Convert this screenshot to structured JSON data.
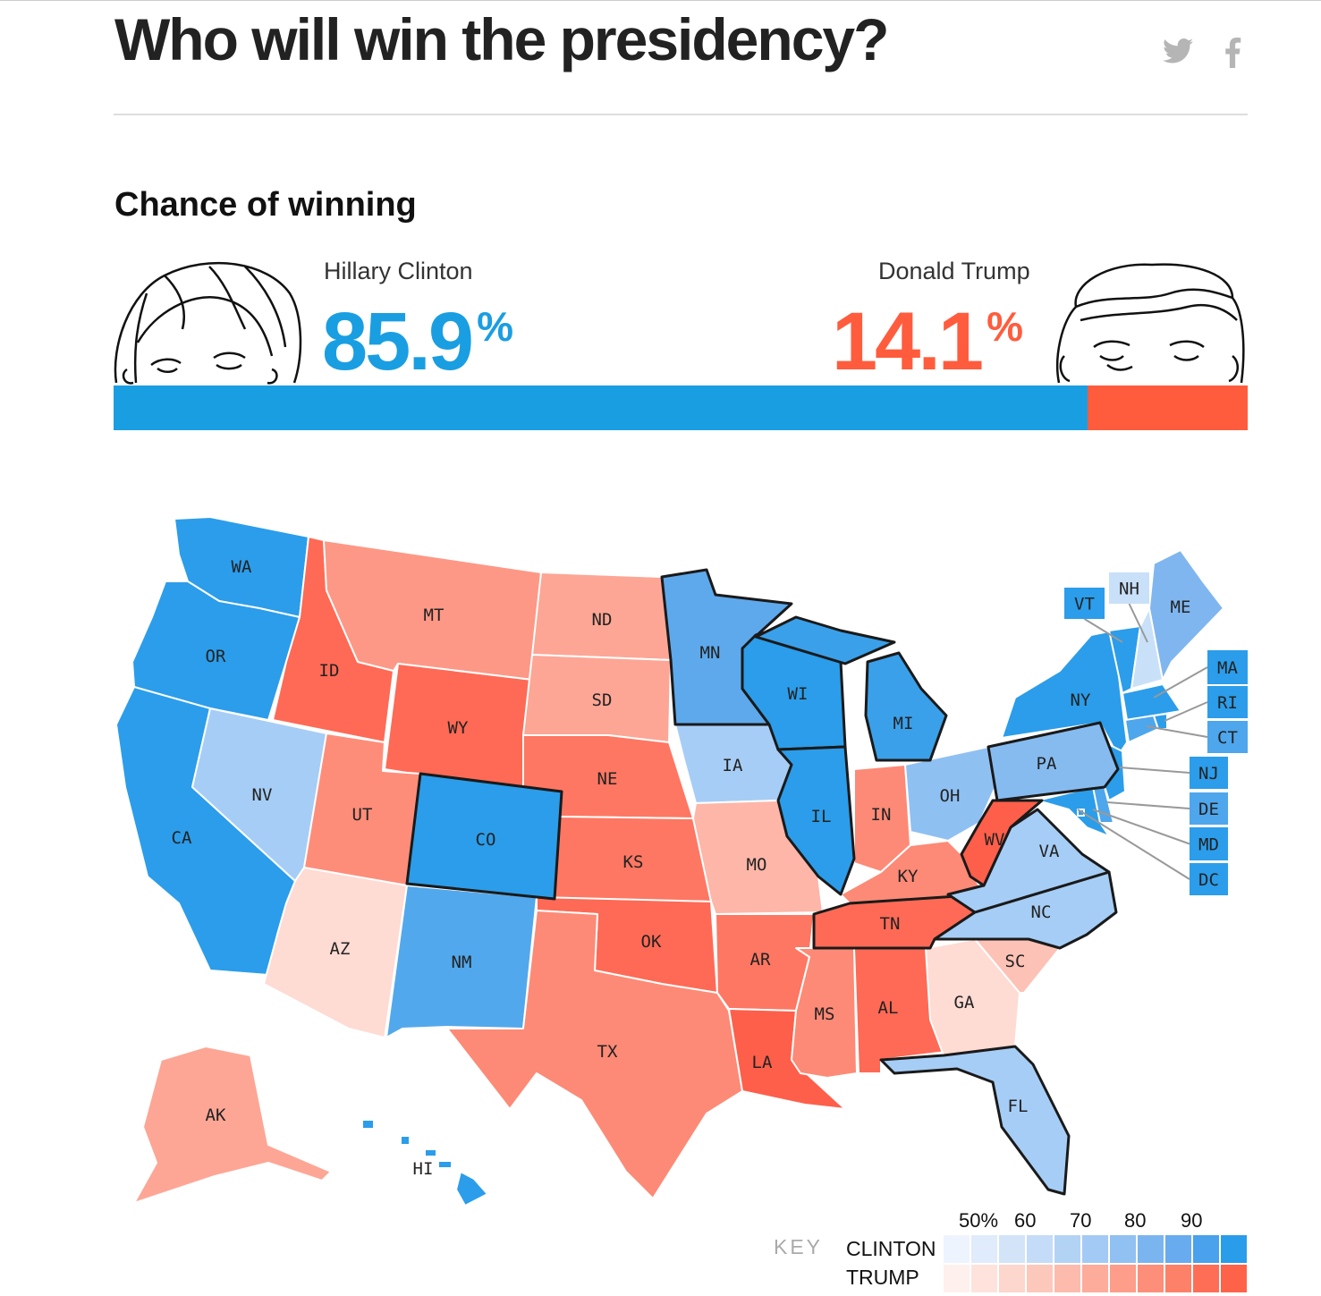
{
  "header": {
    "title": "Who will win the presidency?",
    "share_icons": [
      "twitter-icon",
      "facebook-icon"
    ]
  },
  "section_title": "Chance of winning",
  "clinton": {
    "name": "Hillary Clinton",
    "value": "85.9",
    "unit": "%",
    "probability": 85.9,
    "color": "#1a9ee2"
  },
  "trump": {
    "name": "Donald Trump",
    "value": "14.1",
    "unit": "%",
    "probability": 14.1,
    "color": "#ff5c3e"
  },
  "map": {
    "states": [
      {
        "code": "WA",
        "color": "#2b9dea"
      },
      {
        "code": "OR",
        "color": "#2b9dea"
      },
      {
        "code": "CA",
        "color": "#2b9dea"
      },
      {
        "code": "NV",
        "color": "#a6cdf5"
      },
      {
        "code": "ID",
        "color": "#fe6a55"
      },
      {
        "code": "MT",
        "color": "#fd9886"
      },
      {
        "code": "WY",
        "color": "#fe6a55"
      },
      {
        "code": "UT",
        "color": "#fd8d79"
      },
      {
        "code": "AZ",
        "color": "#fedbd3"
      },
      {
        "code": "CO",
        "color": "#2b9dea"
      },
      {
        "code": "NM",
        "color": "#52a8ec"
      },
      {
        "code": "ND",
        "color": "#fda695"
      },
      {
        "code": "SD",
        "color": "#fda695"
      },
      {
        "code": "NE",
        "color": "#fe7763"
      },
      {
        "code": "KS",
        "color": "#fe7763"
      },
      {
        "code": "OK",
        "color": "#fe6a55"
      },
      {
        "code": "TX",
        "color": "#fd8a76"
      },
      {
        "code": "MN",
        "color": "#5ea9ec"
      },
      {
        "code": "IA",
        "color": "#a6cdf5"
      },
      {
        "code": "MO",
        "color": "#fdb6a8"
      },
      {
        "code": "AR",
        "color": "#fe7763"
      },
      {
        "code": "LA",
        "color": "#fe5f4a"
      },
      {
        "code": "WI",
        "color": "#2b9dea"
      },
      {
        "code": "IL",
        "color": "#2b9dea"
      },
      {
        "code": "MI",
        "color": "#3aa0ea"
      },
      {
        "code": "IN",
        "color": "#fd8a76"
      },
      {
        "code": "OH",
        "color": "#8fc0f2"
      },
      {
        "code": "KY",
        "color": "#fd8a76"
      },
      {
        "code": "TN",
        "color": "#fe6a55"
      },
      {
        "code": "MS",
        "color": "#fd8a76"
      },
      {
        "code": "AL",
        "color": "#fe6a55"
      },
      {
        "code": "GA",
        "color": "#fedbd3"
      },
      {
        "code": "FL",
        "color": "#a6cdf5"
      },
      {
        "code": "SC",
        "color": "#fdc2b6"
      },
      {
        "code": "NC",
        "color": "#a6cdf5"
      },
      {
        "code": "VA",
        "color": "#a6cdf5"
      },
      {
        "code": "WV",
        "color": "#fe5f4a"
      },
      {
        "code": "PA",
        "color": "#86bbf0"
      },
      {
        "code": "NY",
        "color": "#2b9dea"
      },
      {
        "code": "VT",
        "color": "#2b9dea"
      },
      {
        "code": "NH",
        "color": "#c9e0f9"
      },
      {
        "code": "ME",
        "color": "#7fb6ef"
      },
      {
        "code": "MA",
        "color": "#2b9dea"
      },
      {
        "code": "CT",
        "color": "#4ea6ec"
      },
      {
        "code": "RI",
        "color": "#2b9dea"
      },
      {
        "code": "NJ",
        "color": "#2b9dea"
      },
      {
        "code": "DE",
        "color": "#4ea6ec"
      },
      {
        "code": "MD",
        "color": "#2b9dea"
      },
      {
        "code": "DC",
        "color": "#2b9dea"
      },
      {
        "code": "AK",
        "color": "#fda695"
      },
      {
        "code": "HI",
        "color": "#2b9dea"
      }
    ]
  },
  "key": {
    "title": "KEY",
    "rows": [
      "CLINTON",
      "TRUMP"
    ],
    "ticks": [
      "50%",
      "60",
      "70",
      "80",
      "90"
    ],
    "clinton_colors": [
      "#eef4fd",
      "#e0ebfb",
      "#d3e4f9",
      "#c4dcf7",
      "#b3d3f5",
      "#a2caf4",
      "#91c0f2",
      "#7bb5f0",
      "#68abee",
      "#4aa1ec",
      "#2a9dea"
    ],
    "trump_colors": [
      "#fef0ed",
      "#fee3dd",
      "#fdd6cd",
      "#fdc8bc",
      "#fdbbad",
      "#fdab9b",
      "#fd9d8a",
      "#fd8e79",
      "#fd8068",
      "#fe6e57",
      "#fe6249"
    ]
  }
}
